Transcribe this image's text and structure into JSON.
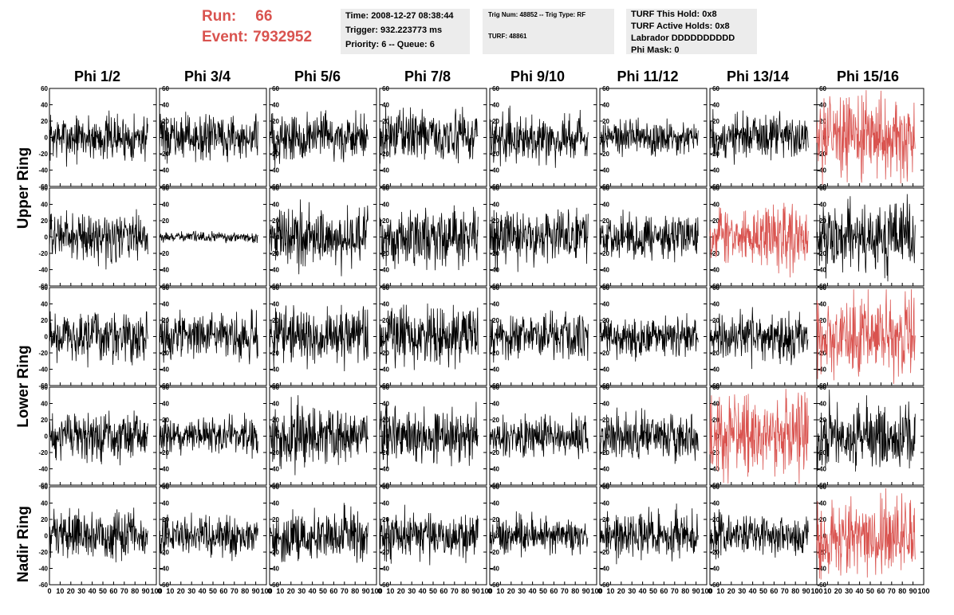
{
  "header": {
    "run_label": "Run:",
    "run_value": "66",
    "event_label": "Event:",
    "event_value": "7932952"
  },
  "info_panel_1": {
    "time": "Time: 2008-12-27 08:38:44",
    "trigger": "Trigger: 932.223773 ms",
    "priority": "Priority: 6 -- Queue: 6"
  },
  "info_panel_2": {
    "trig_line": "Trig Num: 48852 -- Trig Type: RF",
    "turf_line": "TURF: 48861"
  },
  "info_panel_3": {
    "this_hold": "TURF This Hold: 0x8",
    "active_holds": "TURF Active Holds: 0x8",
    "labrador": "Labrador DDDDDDDDDD",
    "phi_mask": "Phi Mask: 0"
  },
  "columns": [
    "Phi 1/2",
    "Phi 3/4",
    "Phi 5/6",
    "Phi 7/8",
    "Phi 9/10",
    "Phi 11/12",
    "Phi 13/14",
    "Phi 15/16"
  ],
  "rows": [
    "Upper Ring",
    "Lower Ring",
    "Nadir Ring"
  ],
  "colors": {
    "normal": "#000000",
    "highlight": "#d9534f",
    "title": "#d9534f",
    "panel_bg": "#ececec"
  },
  "chart_data": {
    "type": "line",
    "layout": "grid of 5 panel rows x 8 columns; Upper Ring and Lower Ring each span two panel rows, Nadir Ring one",
    "xlim": [
      0,
      100
    ],
    "ylim": [
      -60,
      60
    ],
    "x_ticks": [
      0,
      10,
      20,
      30,
      40,
      50,
      60,
      70,
      80,
      90,
      100
    ],
    "x_tick_labels": [
      "0",
      "10",
      "20",
      "30",
      "40",
      "50",
      "60",
      "70",
      "80",
      "90",
      "100"
    ],
    "y_ticks": [
      -60,
      -40,
      -20,
      0,
      20,
      40,
      60
    ],
    "y_tick_labels": [
      "-60",
      "-40",
      "-20",
      "0",
      "20",
      "40",
      "60"
    ],
    "panels": [
      {
        "row": 0,
        "col": 0,
        "amplitude": 14,
        "color": "black"
      },
      {
        "row": 0,
        "col": 1,
        "amplitude": 13,
        "color": "black"
      },
      {
        "row": 0,
        "col": 2,
        "amplitude": 15,
        "color": "black"
      },
      {
        "row": 0,
        "col": 3,
        "amplitude": 15,
        "color": "black"
      },
      {
        "row": 0,
        "col": 4,
        "amplitude": 14,
        "color": "black"
      },
      {
        "row": 0,
        "col": 5,
        "amplitude": 11,
        "color": "black"
      },
      {
        "row": 0,
        "col": 6,
        "amplitude": 14,
        "color": "black"
      },
      {
        "row": 0,
        "col": 7,
        "amplitude": 24,
        "color": "red"
      },
      {
        "row": 1,
        "col": 0,
        "amplitude": 14,
        "color": "black"
      },
      {
        "row": 1,
        "col": 1,
        "amplitude": 3,
        "color": "black"
      },
      {
        "row": 1,
        "col": 2,
        "amplitude": 18,
        "color": "black"
      },
      {
        "row": 1,
        "col": 3,
        "amplitude": 17,
        "color": "black"
      },
      {
        "row": 1,
        "col": 4,
        "amplitude": 16,
        "color": "black"
      },
      {
        "row": 1,
        "col": 5,
        "amplitude": 13,
        "color": "black"
      },
      {
        "row": 1,
        "col": 6,
        "amplitude": 18,
        "color": "red"
      },
      {
        "row": 1,
        "col": 7,
        "amplitude": 20,
        "color": "black"
      },
      {
        "row": 2,
        "col": 0,
        "amplitude": 15,
        "color": "black"
      },
      {
        "row": 2,
        "col": 1,
        "amplitude": 13,
        "color": "black"
      },
      {
        "row": 2,
        "col": 2,
        "amplitude": 16,
        "color": "black"
      },
      {
        "row": 2,
        "col": 3,
        "amplitude": 18,
        "color": "black"
      },
      {
        "row": 2,
        "col": 4,
        "amplitude": 14,
        "color": "black"
      },
      {
        "row": 2,
        "col": 5,
        "amplitude": 12,
        "color": "black"
      },
      {
        "row": 2,
        "col": 6,
        "amplitude": 14,
        "color": "black"
      },
      {
        "row": 2,
        "col": 7,
        "amplitude": 24,
        "color": "red"
      },
      {
        "row": 3,
        "col": 0,
        "amplitude": 14,
        "color": "black"
      },
      {
        "row": 3,
        "col": 1,
        "amplitude": 11,
        "color": "black"
      },
      {
        "row": 3,
        "col": 2,
        "amplitude": 18,
        "color": "black"
      },
      {
        "row": 3,
        "col": 3,
        "amplitude": 17,
        "color": "black"
      },
      {
        "row": 3,
        "col": 4,
        "amplitude": 12,
        "color": "black"
      },
      {
        "row": 3,
        "col": 5,
        "amplitude": 14,
        "color": "black"
      },
      {
        "row": 3,
        "col": 6,
        "amplitude": 24,
        "color": "red"
      },
      {
        "row": 3,
        "col": 7,
        "amplitude": 20,
        "color": "black"
      },
      {
        "row": 4,
        "col": 0,
        "amplitude": 14,
        "color": "black"
      },
      {
        "row": 4,
        "col": 1,
        "amplitude": 12,
        "color": "black"
      },
      {
        "row": 4,
        "col": 2,
        "amplitude": 15,
        "color": "black"
      },
      {
        "row": 4,
        "col": 3,
        "amplitude": 15,
        "color": "black"
      },
      {
        "row": 4,
        "col": 4,
        "amplitude": 11,
        "color": "black"
      },
      {
        "row": 4,
        "col": 5,
        "amplitude": 14,
        "color": "black"
      },
      {
        "row": 4,
        "col": 6,
        "amplitude": 12,
        "color": "black"
      },
      {
        "row": 4,
        "col": 7,
        "amplitude": 22,
        "color": "red"
      }
    ]
  }
}
